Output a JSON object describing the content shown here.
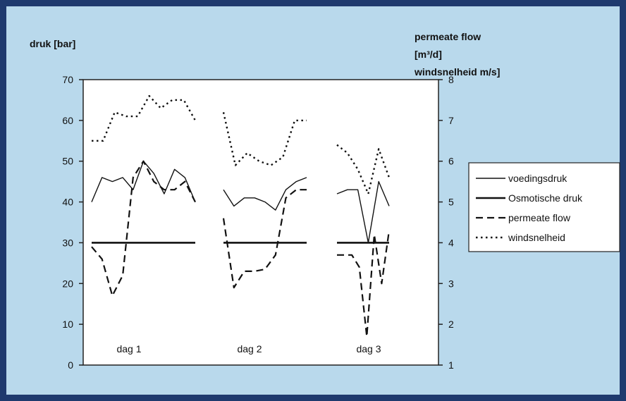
{
  "labels": {
    "left_axis_title": "druk [bar]",
    "right_axis_title_1": "permeate flow",
    "right_axis_title_2": "[m³/d]",
    "right_axis_title_3": "windsnelheid m/s]"
  },
  "chart_data": {
    "type": "line",
    "left_axis": {
      "label": "druk [bar]",
      "range": [
        0,
        70
      ],
      "ticks": [
        "0",
        "10",
        "20",
        "30",
        "40",
        "50",
        "60",
        "70"
      ]
    },
    "right_axis": {
      "label": "permeate flow [m³/d] windsnelheid m/s]",
      "range": [
        1,
        8
      ],
      "ticks": [
        "1",
        "2",
        "3",
        "4",
        "5",
        "6",
        "7",
        "8"
      ]
    },
    "groups": [
      "dag 1",
      "dag 2",
      "dag 3"
    ],
    "legend_position": "right",
    "grid": false,
    "series": [
      {
        "name": "voedingsdruk",
        "axis": "left",
        "style": "solid-thin",
        "segments": [
          [
            [
              0,
              40
            ],
            [
              1,
              46
            ],
            [
              2,
              45
            ],
            [
              3,
              46
            ],
            [
              4,
              43
            ],
            [
              5,
              50
            ],
            [
              6,
              47
            ],
            [
              7,
              42
            ],
            [
              8,
              48
            ],
            [
              9,
              46
            ],
            [
              10,
              40
            ]
          ],
          [
            [
              0,
              43
            ],
            [
              1,
              39
            ],
            [
              2,
              41
            ],
            [
              3,
              41
            ],
            [
              4,
              40
            ],
            [
              5,
              38
            ],
            [
              6,
              43
            ],
            [
              7,
              45
            ],
            [
              8,
              46
            ]
          ],
          [
            [
              0,
              42
            ],
            [
              1,
              43
            ],
            [
              2,
              43
            ],
            [
              3,
              30
            ],
            [
              4,
              45
            ],
            [
              5,
              39
            ]
          ]
        ]
      },
      {
        "name": "Osmotische druk",
        "axis": "left",
        "style": "solid-thick",
        "segments": [
          [
            [
              0,
              30
            ],
            [
              10,
              30
            ]
          ],
          [
            [
              0,
              30
            ],
            [
              8,
              30
            ]
          ],
          [
            [
              0,
              30
            ],
            [
              5,
              30
            ]
          ]
        ]
      },
      {
        "name": "permeate flow",
        "axis": "right",
        "style": "dashed",
        "segments": [
          [
            [
              0,
              3.9
            ],
            [
              1,
              3.6
            ],
            [
              2,
              2.7
            ],
            [
              3,
              3.2
            ],
            [
              4,
              5.6
            ],
            [
              5,
              6.0
            ],
            [
              6,
              5.5
            ],
            [
              7,
              5.3
            ],
            [
              8,
              5.3
            ],
            [
              9,
              5.5
            ],
            [
              10,
              5.0
            ]
          ],
          [
            [
              0,
              4.6
            ],
            [
              1,
              2.9
            ],
            [
              2,
              3.3
            ],
            [
              3,
              3.3
            ],
            [
              4,
              3.35
            ],
            [
              5,
              3.7
            ],
            [
              6,
              5.1
            ],
            [
              7,
              5.3
            ],
            [
              8,
              5.3
            ]
          ],
          [
            [
              0,
              3.7
            ],
            [
              1,
              3.7
            ],
            [
              2,
              3.7
            ],
            [
              3,
              3.4
            ],
            [
              4,
              1.7
            ],
            [
              5,
              4.2
            ],
            [
              6,
              3.0
            ],
            [
              7,
              4.3
            ]
          ]
        ]
      },
      {
        "name": "windsnelheid",
        "axis": "right",
        "style": "dotted",
        "segments": [
          [
            [
              0,
              6.5
            ],
            [
              1,
              6.5
            ],
            [
              2,
              7.2
            ],
            [
              3,
              7.1
            ],
            [
              4,
              7.1
            ],
            [
              5,
              7.6
            ],
            [
              6,
              7.3
            ],
            [
              7,
              7.5
            ],
            [
              8,
              7.5
            ],
            [
              9,
              7.0
            ]
          ],
          [
            [
              0,
              7.2
            ],
            [
              1,
              5.9
            ],
            [
              2,
              6.2
            ],
            [
              3,
              6.0
            ],
            [
              4,
              5.9
            ],
            [
              5,
              6.1
            ],
            [
              6,
              7.0
            ],
            [
              7,
              7.0
            ]
          ],
          [
            [
              0,
              6.4
            ],
            [
              1,
              6.2
            ],
            [
              2,
              5.8
            ],
            [
              3,
              5.2
            ],
            [
              4,
              6.3
            ],
            [
              5,
              5.6
            ]
          ]
        ]
      }
    ]
  }
}
